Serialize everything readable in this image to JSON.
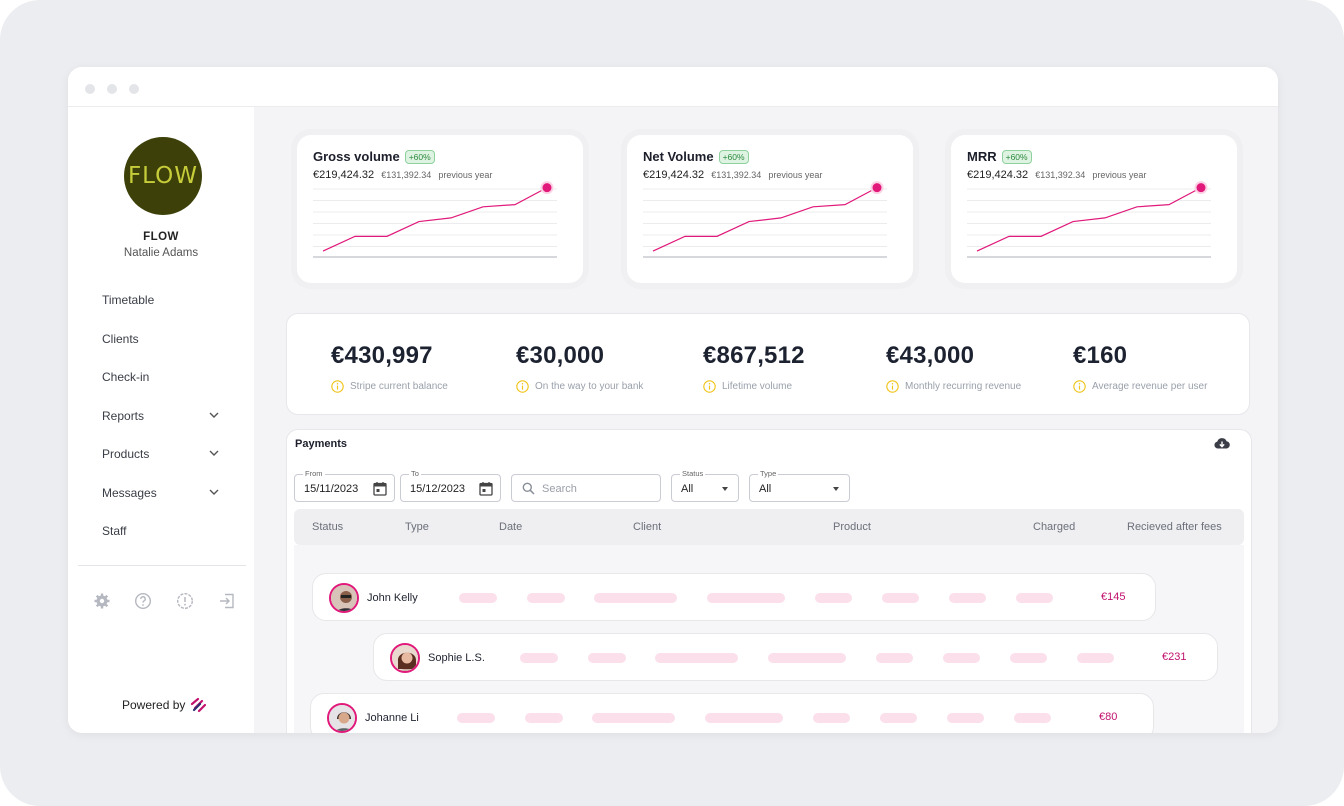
{
  "brand": {
    "logo_text": "FLOW",
    "org_name": "FLOW",
    "user_name": "Natalie Adams",
    "powered_by": "Powered by"
  },
  "nav": [
    {
      "label": "Timetable",
      "has_chevron": false
    },
    {
      "label": "Clients",
      "has_chevron": false
    },
    {
      "label": "Check-in",
      "has_chevron": false
    },
    {
      "label": "Reports",
      "has_chevron": true
    },
    {
      "label": "Products",
      "has_chevron": true
    },
    {
      "label": "Messages",
      "has_chevron": true
    },
    {
      "label": "Staff",
      "has_chevron": false
    }
  ],
  "footer_icons": [
    "settings-icon",
    "help-icon",
    "alert-icon",
    "logout-icon"
  ],
  "kpis": [
    {
      "title": "Gross volume",
      "badge": "+60%",
      "value": "€219,424.32",
      "previous": "€131,392.34",
      "previous_label": "previous year"
    },
    {
      "title": "Net Volume",
      "badge": "+60%",
      "value": "€219,424.32",
      "previous": "€131,392.34",
      "previous_label": "previous year"
    },
    {
      "title": "MRR",
      "badge": "+60%",
      "value": "€219,424.32",
      "previous": "€131,392.34",
      "previous_label": "previous year"
    }
  ],
  "chart_data": [
    {
      "type": "line",
      "title": "Gross volume",
      "values": [
        0,
        2,
        2,
        4,
        4.5,
        6,
        6.3,
        8.6
      ],
      "ylim": [
        -0.8,
        9.5
      ],
      "grid": true,
      "color": "#e0197a"
    },
    {
      "type": "line",
      "title": "Net Volume",
      "values": [
        0,
        2,
        2,
        4,
        4.5,
        6,
        6.3,
        8.6
      ],
      "ylim": [
        -0.8,
        9.5
      ],
      "grid": true,
      "color": "#e0197a"
    },
    {
      "type": "line",
      "title": "MRR",
      "values": [
        0,
        2,
        2,
        4,
        4.5,
        6,
        6.3,
        8.6
      ],
      "ylim": [
        -0.8,
        9.5
      ],
      "grid": true,
      "color": "#e0197a"
    }
  ],
  "stats": [
    {
      "value": "€430,997",
      "label": "Stripe current balance"
    },
    {
      "value": "€30,000",
      "label": "On the way to your bank"
    },
    {
      "value": "€867,512",
      "label": "Lifetime volume"
    },
    {
      "value": "€43,000",
      "label": "Monthly recurring revenue"
    },
    {
      "value": "€160",
      "label": "Average revenue per user"
    }
  ],
  "payments": {
    "title": "Payments",
    "from": {
      "label": "From",
      "value": "15/11/2023"
    },
    "to": {
      "label": "To",
      "value": "15/12/2023"
    },
    "search_placeholder": "Search",
    "status": {
      "label": "Status",
      "value": "All"
    },
    "type": {
      "label": "Type",
      "value": "All"
    },
    "columns": [
      "Status",
      "Type",
      "Date",
      "Client",
      "Product",
      "Charged",
      "Recieved after fees"
    ],
    "rows": [
      {
        "name": "John Kelly",
        "amount": "€145"
      },
      {
        "name": "Sophie L.S.",
        "amount": "€231"
      },
      {
        "name": "Johanne Li",
        "amount": "€80"
      }
    ]
  },
  "colors": {
    "accent": "#e0197a",
    "badge_green": "#2b8a3e",
    "info_yellow": "#f0c419",
    "logo_bg": "#3d4109",
    "logo_text": "#c7cd3a"
  }
}
